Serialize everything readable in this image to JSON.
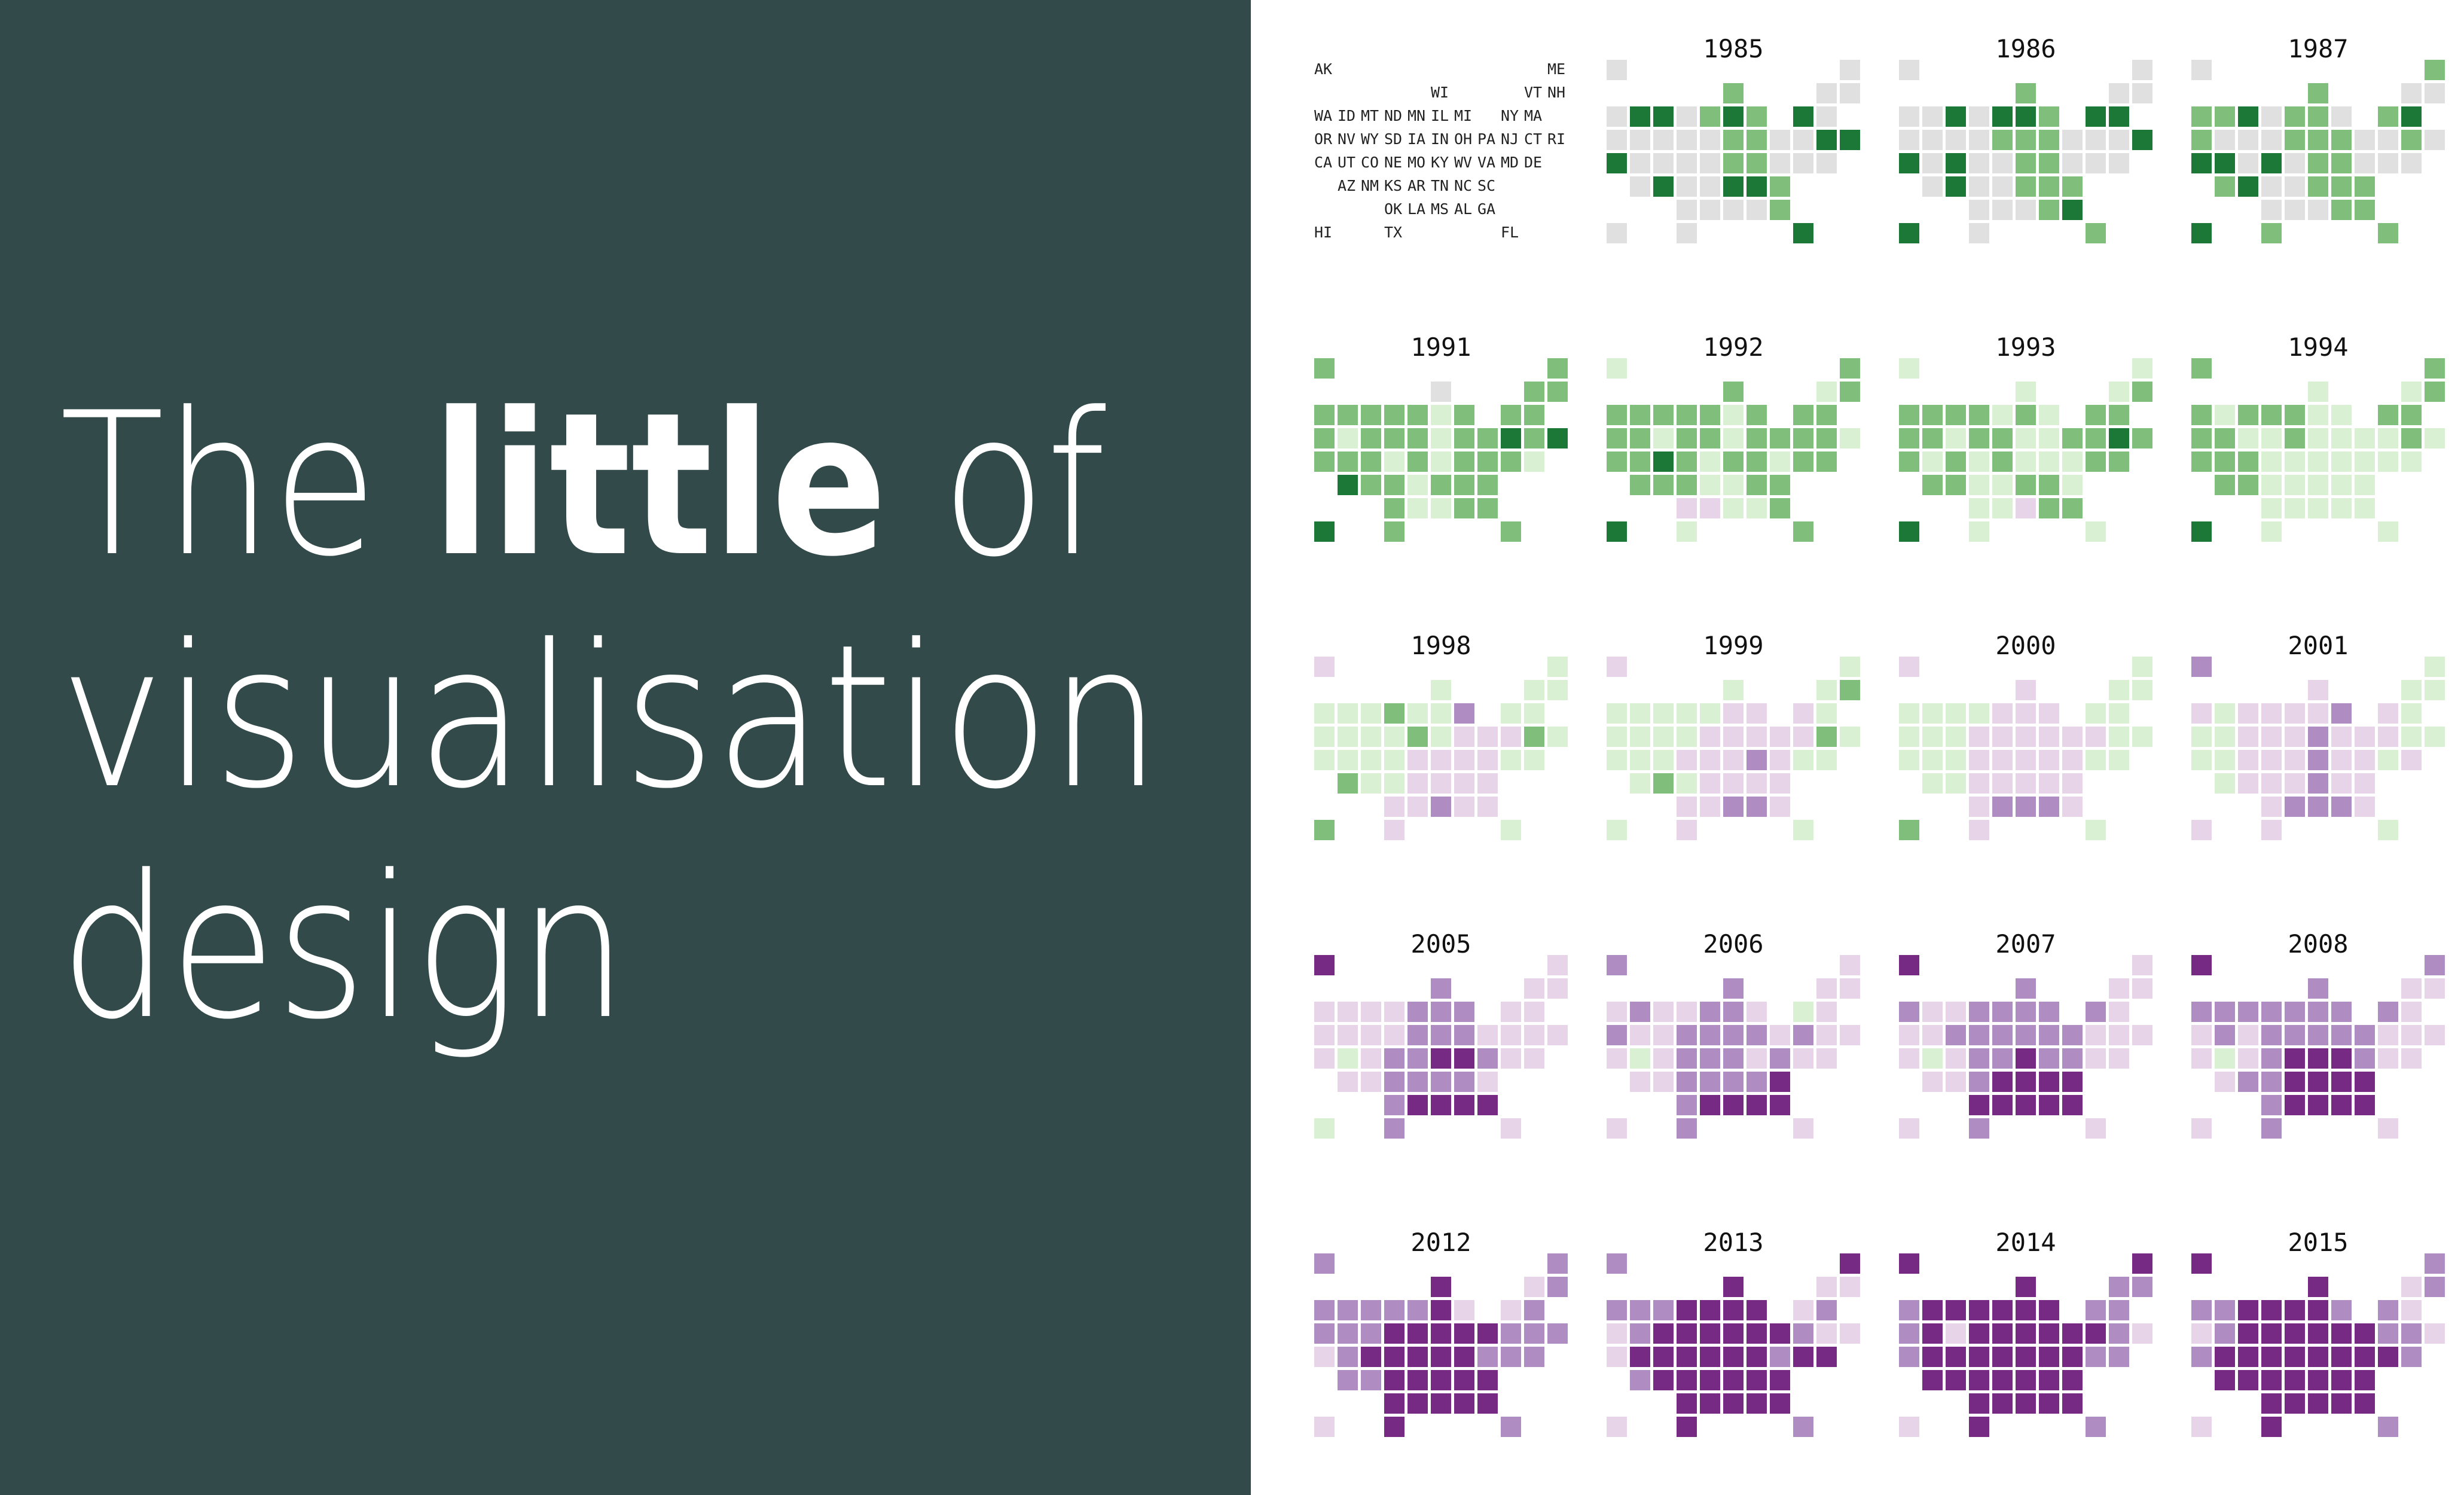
{
  "title": {
    "words": [
      "The",
      "little",
      "of",
      "visualisation",
      "design"
    ]
  },
  "chart_data": {
    "type": "tile-grid-map",
    "color_scale": [
      {
        "value": 3,
        "color": "#1b7837"
      },
      {
        "value": 2,
        "color": "#7fbf7b"
      },
      {
        "value": 1,
        "color": "#d9f0d3"
      },
      {
        "value": 0,
        "color": "#e0e0e0"
      },
      {
        "value": -1,
        "color": "#e7d4e8"
      },
      {
        "value": -2,
        "color": "#af8dc3"
      },
      {
        "value": -3,
        "color": "#762a83"
      }
    ],
    "key_grid": [
      [
        "AK",
        null,
        null,
        null,
        null,
        null,
        null,
        null,
        null,
        null,
        "ME"
      ],
      [
        null,
        null,
        null,
        null,
        null,
        "WI",
        null,
        null,
        null,
        "VT",
        "NH"
      ],
      [
        "WA",
        "ID",
        "MT",
        "ND",
        "MN",
        "IL",
        "MI",
        null,
        "NY",
        "MA",
        null
      ],
      [
        "OR",
        "NV",
        "WY",
        "SD",
        "IA",
        "IN",
        "OH",
        "PA",
        "NJ",
        "CT",
        "RI"
      ],
      [
        "CA",
        "UT",
        "CO",
        "NE",
        "MO",
        "KY",
        "WV",
        "VA",
        "MD",
        "DE",
        null
      ],
      [
        null,
        "AZ",
        "NM",
        "KS",
        "AR",
        "TN",
        "NC",
        "SC",
        null,
        null,
        null
      ],
      [
        null,
        null,
        null,
        "OK",
        "LA",
        "MS",
        "AL",
        "GA",
        null,
        null,
        null
      ],
      [
        "HI",
        null,
        null,
        "TX",
        null,
        null,
        null,
        null,
        "FL",
        null,
        null
      ]
    ],
    "maps": [
      {
        "year": 1985,
        "values": [
          0,
          0,
          2,
          0,
          0,
          0,
          3,
          3,
          0,
          2,
          3,
          2,
          3,
          0,
          0,
          0,
          0,
          0,
          0,
          2,
          2,
          0,
          0,
          3,
          3,
          3,
          0,
          0,
          0,
          0,
          2,
          2,
          0,
          0,
          0,
          0,
          3,
          0,
          0,
          3,
          3,
          2,
          0,
          0,
          0,
          0,
          2,
          0,
          0,
          3
        ]
      },
      {
        "year": 1986,
        "values": [
          0,
          0,
          2,
          0,
          0,
          0,
          0,
          3,
          0,
          3,
          3,
          2,
          3,
          3,
          0,
          0,
          0,
          0,
          2,
          2,
          2,
          0,
          0,
          0,
          3,
          3,
          0,
          3,
          0,
          0,
          2,
          2,
          0,
          0,
          0,
          0,
          3,
          0,
          0,
          2,
          2,
          2,
          0,
          0,
          0,
          2,
          3,
          3,
          0,
          2
        ]
      },
      {
        "year": 1987,
        "values": [
          0,
          2,
          2,
          0,
          0,
          2,
          2,
          3,
          0,
          2,
          2,
          0,
          2,
          3,
          2,
          0,
          0,
          0,
          2,
          2,
          2,
          0,
          0,
          2,
          0,
          3,
          3,
          0,
          3,
          0,
          2,
          2,
          0,
          0,
          0,
          2,
          3,
          0,
          0,
          2,
          2,
          2,
          0,
          0,
          0,
          2,
          2,
          3,
          2,
          2
        ]
      },
      {
        "year": 1991,
        "values": [
          2,
          2,
          0,
          2,
          2,
          2,
          2,
          2,
          2,
          2,
          1,
          2,
          2,
          2,
          2,
          1,
          2,
          2,
          2,
          1,
          2,
          2,
          3,
          2,
          3,
          2,
          2,
          2,
          1,
          2,
          1,
          2,
          2,
          2,
          1,
          3,
          2,
          2,
          1,
          2,
          2,
          2,
          2,
          1,
          1,
          2,
          2,
          3,
          2,
          2
        ]
      },
      {
        "year": 1992,
        "values": [
          1,
          2,
          2,
          1,
          2,
          2,
          2,
          2,
          2,
          2,
          1,
          2,
          2,
          2,
          2,
          2,
          1,
          2,
          2,
          1,
          2,
          2,
          2,
          2,
          1,
          2,
          2,
          3,
          2,
          1,
          2,
          2,
          1,
          2,
          2,
          2,
          2,
          2,
          1,
          1,
          2,
          2,
          -1,
          -1,
          1,
          1,
          2,
          3,
          1,
          2
        ]
      },
      {
        "year": 1993,
        "values": [
          1,
          1,
          1,
          1,
          2,
          2,
          2,
          2,
          2,
          1,
          2,
          1,
          2,
          2,
          2,
          2,
          1,
          2,
          2,
          1,
          1,
          2,
          2,
          3,
          2,
          2,
          1,
          2,
          1,
          2,
          1,
          1,
          1,
          2,
          2,
          2,
          2,
          1,
          1,
          2,
          2,
          1,
          1,
          1,
          -1,
          2,
          2,
          3,
          1,
          1
        ]
      },
      {
        "year": 1994,
        "values": [
          2,
          2,
          1,
          1,
          2,
          2,
          1,
          2,
          2,
          2,
          1,
          1,
          2,
          2,
          2,
          2,
          1,
          1,
          2,
          1,
          1,
          1,
          1,
          2,
          1,
          2,
          2,
          2,
          1,
          1,
          1,
          1,
          1,
          1,
          1,
          2,
          2,
          1,
          1,
          1,
          1,
          1,
          1,
          1,
          1,
          1,
          1,
          3,
          1,
          1
        ]
      },
      {
        "year": 1998,
        "values": [
          -1,
          1,
          1,
          1,
          1,
          1,
          1,
          1,
          2,
          1,
          1,
          -2,
          1,
          1,
          1,
          1,
          1,
          1,
          2,
          1,
          -1,
          -1,
          -1,
          2,
          1,
          1,
          1,
          1,
          1,
          -1,
          -1,
          -1,
          -1,
          1,
          1,
          2,
          1,
          1,
          -1,
          -1,
          -1,
          -1,
          -1,
          -1,
          -2,
          -1,
          -1,
          2,
          -1,
          1
        ]
      },
      {
        "year": 1999,
        "values": [
          -1,
          1,
          1,
          1,
          2,
          1,
          1,
          1,
          1,
          1,
          -1,
          -1,
          -1,
          1,
          1,
          1,
          1,
          1,
          -1,
          -1,
          -1,
          -1,
          -1,
          2,
          1,
          1,
          1,
          1,
          -1,
          -1,
          -1,
          -2,
          -1,
          1,
          1,
          1,
          2,
          1,
          -1,
          -1,
          -1,
          -1,
          -1,
          -1,
          -2,
          -2,
          -1,
          1,
          -1,
          1
        ]
      },
      {
        "year": 2000,
        "values": [
          -1,
          1,
          -1,
          1,
          1,
          1,
          1,
          1,
          1,
          -1,
          -1,
          -1,
          1,
          1,
          1,
          1,
          1,
          -1,
          -1,
          -1,
          -1,
          -1,
          -1,
          1,
          1,
          1,
          1,
          1,
          -1,
          -1,
          -1,
          -1,
          -1,
          1,
          1,
          1,
          1,
          -1,
          -1,
          -1,
          -1,
          -1,
          -1,
          -2,
          -2,
          -2,
          -1,
          2,
          -1,
          1
        ]
      },
      {
        "year": 2001,
        "values": [
          -2,
          1,
          -1,
          1,
          1,
          -1,
          1,
          -1,
          -1,
          -1,
          -1,
          -2,
          -1,
          1,
          1,
          1,
          -1,
          -1,
          -1,
          -2,
          -1,
          -1,
          -1,
          1,
          1,
          1,
          1,
          -1,
          -1,
          -1,
          -2,
          -1,
          -1,
          1,
          -1,
          1,
          -1,
          -1,
          -1,
          -2,
          -1,
          -1,
          -1,
          -2,
          -2,
          -2,
          -1,
          -1,
          -1,
          1
        ]
      },
      {
        "year": 2005,
        "values": [
          -3,
          -1,
          -2,
          -1,
          -1,
          -1,
          -1,
          -1,
          -1,
          -2,
          -2,
          -2,
          -1,
          -1,
          -1,
          -1,
          -1,
          -1,
          -2,
          -2,
          -2,
          -1,
          -1,
          -1,
          -1,
          -1,
          1,
          -1,
          -2,
          -2,
          -3,
          -3,
          -2,
          -1,
          -1,
          -1,
          -1,
          -2,
          -2,
          -2,
          -2,
          -1,
          -2,
          -3,
          -3,
          -3,
          -3,
          1,
          -2,
          -1
        ]
      },
      {
        "year": 2006,
        "values": [
          -2,
          -1,
          -2,
          -1,
          -1,
          -1,
          -2,
          -1,
          -1,
          -2,
          -2,
          -1,
          1,
          -1,
          -2,
          -1,
          -1,
          -2,
          -2,
          -2,
          -2,
          -1,
          -2,
          -1,
          -1,
          -1,
          1,
          -1,
          -2,
          -2,
          -2,
          -1,
          -2,
          -1,
          -1,
          -1,
          -1,
          -2,
          -2,
          -2,
          -2,
          -3,
          -2,
          -3,
          -3,
          -3,
          -3,
          -1,
          -2,
          -1
        ]
      },
      {
        "year": 2007,
        "values": [
          -3,
          -1,
          -2,
          -1,
          -1,
          -2,
          -1,
          -1,
          -2,
          -2,
          -2,
          -2,
          -2,
          -1,
          -1,
          -1,
          -2,
          -2,
          -2,
          -2,
          -2,
          -2,
          -1,
          -1,
          -1,
          -1,
          1,
          -1,
          -2,
          -2,
          -3,
          -2,
          -2,
          -1,
          -1,
          -1,
          -1,
          -2,
          -3,
          -3,
          -3,
          -3,
          -3,
          -3,
          -3,
          -3,
          -3,
          -1,
          -2,
          -1
        ]
      },
      {
        "year": 2008,
        "values": [
          -3,
          -2,
          -2,
          -1,
          -1,
          -2,
          -2,
          -2,
          -2,
          -2,
          -2,
          -2,
          -2,
          -1,
          -1,
          -2,
          -1,
          -2,
          -2,
          -2,
          -2,
          -2,
          -1,
          -1,
          -1,
          -1,
          1,
          -1,
          -2,
          -3,
          -3,
          -3,
          -2,
          -1,
          -1,
          -1,
          -2,
          -2,
          -3,
          -3,
          -3,
          -3,
          -2,
          -3,
          -3,
          -3,
          -3,
          -1,
          -2,
          -1
        ]
      },
      {
        "year": 2012,
        "values": [
          -2,
          -2,
          -3,
          -1,
          -2,
          -2,
          -2,
          -2,
          -2,
          -2,
          -3,
          -1,
          -1,
          -2,
          -2,
          -2,
          -2,
          -3,
          -3,
          -3,
          -3,
          -3,
          -2,
          -2,
          -2,
          -1,
          -2,
          -3,
          -3,
          -3,
          -3,
          -3,
          -2,
          -2,
          -2,
          -2,
          -2,
          -3,
          -3,
          -3,
          -3,
          -3,
          -3,
          -3,
          -3,
          -3,
          -3,
          -1,
          -3,
          -2
        ]
      },
      {
        "year": 2013,
        "values": [
          -2,
          -3,
          -3,
          -1,
          -1,
          -2,
          -2,
          -2,
          -3,
          -3,
          -3,
          -3,
          -1,
          -2,
          -1,
          -2,
          -3,
          -3,
          -3,
          -3,
          -3,
          -3,
          -2,
          -1,
          -1,
          -1,
          -3,
          -3,
          -3,
          -3,
          -3,
          -3,
          -2,
          -3,
          -3,
          -2,
          -3,
          -3,
          -3,
          -3,
          -3,
          -3,
          -3,
          -3,
          -3,
          -3,
          -3,
          -1,
          -3,
          -2
        ]
      },
      {
        "year": 2014,
        "values": [
          -3,
          -3,
          -3,
          -2,
          -2,
          -2,
          -3,
          -3,
          -3,
          -3,
          -3,
          -3,
          -2,
          -2,
          -2,
          -3,
          -1,
          -3,
          -3,
          -3,
          -3,
          -3,
          -3,
          -2,
          -1,
          -2,
          -3,
          -3,
          -3,
          -3,
          -3,
          -3,
          -3,
          -2,
          -2,
          -3,
          -3,
          -3,
          -3,
          -3,
          -3,
          -3,
          -3,
          -3,
          -3,
          -3,
          -3,
          -1,
          -3,
          -2
        ]
      },
      {
        "year": 2015,
        "values": [
          -3,
          -2,
          -3,
          -1,
          -2,
          -2,
          -2,
          -3,
          -3,
          -3,
          -3,
          -2,
          -2,
          -1,
          -1,
          -2,
          -3,
          -3,
          -3,
          -3,
          -3,
          -3,
          -2,
          -2,
          -1,
          -2,
          -3,
          -3,
          -3,
          -3,
          -3,
          -3,
          -3,
          -3,
          -2,
          -3,
          -3,
          -3,
          -3,
          -3,
          -3,
          -3,
          -3,
          -3,
          -3,
          -3,
          -3,
          -1,
          -3,
          -2
        ]
      }
    ]
  }
}
